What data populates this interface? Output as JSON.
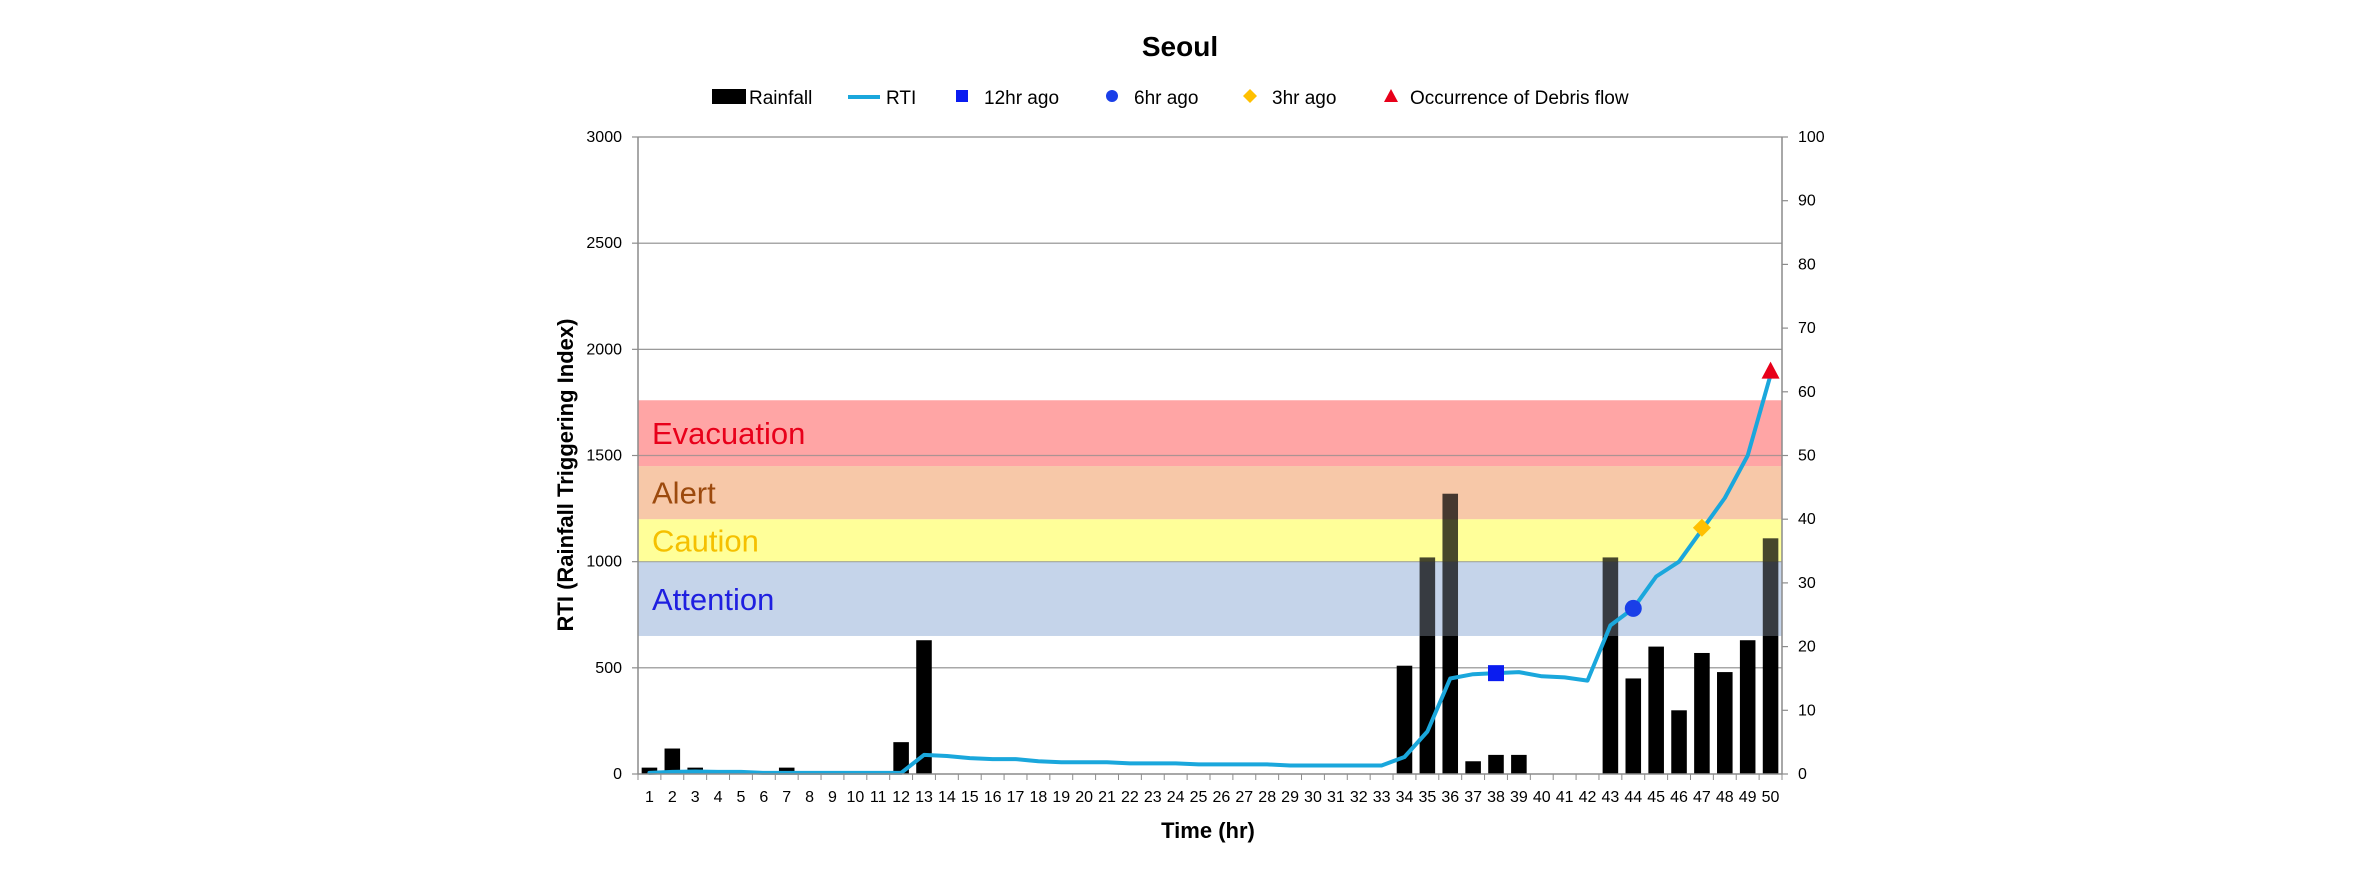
{
  "chart_data": {
    "type": "bar",
    "title": "Seoul",
    "xlabel": "Time (hr)",
    "ylabel": "RTI (Rainfall Triggering Index)",
    "ylim": [
      0,
      3000
    ],
    "y2lim": [
      0,
      100
    ],
    "yticks": [
      0,
      500,
      1000,
      1500,
      2000,
      2500,
      3000
    ],
    "y2ticks": [
      0,
      10,
      20,
      30,
      40,
      50,
      60,
      70,
      80,
      90,
      100
    ],
    "grid": true,
    "legend_position": "top-center",
    "categories": [
      "1",
      "2",
      "3",
      "4",
      "5",
      "6",
      "7",
      "8",
      "9",
      "10",
      "11",
      "12",
      "13",
      "14",
      "15",
      "16",
      "17",
      "18",
      "19",
      "20",
      "21",
      "22",
      "23",
      "24",
      "25",
      "26",
      "27",
      "28",
      "29",
      "30",
      "31",
      "32",
      "33",
      "34",
      "35",
      "36",
      "37",
      "38",
      "39",
      "40",
      "41",
      "42",
      "43",
      "44",
      "45",
      "46",
      "47",
      "48",
      "49",
      "50"
    ],
    "legend": {
      "rainfall": "Rainfall",
      "rti": "RTI",
      "ago12": "12hr ago",
      "ago6": "6hr ago",
      "ago3": "3hr ago",
      "occurrence": "Occurrence of Debris flow"
    },
    "zones": [
      {
        "label": "Attention",
        "from": 650,
        "to": 1000,
        "fill": "#c5d5ea",
        "text_color": "#1f1fe0"
      },
      {
        "label": "Caution",
        "from": 1000,
        "to": 1200,
        "fill": "#ffff99",
        "text_color": "#f5c000"
      },
      {
        "label": "Alert",
        "from": 1200,
        "to": 1450,
        "fill": "#f7c8a8",
        "text_color": "#9c4a0e"
      },
      {
        "label": "Evacuation",
        "from": 1450,
        "to": 1760,
        "fill": "#ffa6a6",
        "text_color": "#e8001a"
      }
    ],
    "series": [
      {
        "name": "Rainfall",
        "type": "bar",
        "axis": "y2",
        "color": "#000000",
        "values": [
          1,
          4,
          1,
          0,
          0,
          0,
          1,
          0,
          0,
          0,
          0,
          5,
          21,
          0,
          0,
          0,
          0,
          0,
          0,
          0,
          0,
          0,
          0,
          0,
          0,
          0,
          0,
          0,
          0,
          0,
          0,
          0,
          0,
          17,
          34,
          44,
          2,
          3,
          3,
          0,
          0,
          0,
          34,
          15,
          20,
          10,
          19,
          16,
          21,
          37
        ]
      },
      {
        "name": "RTI",
        "type": "line",
        "axis": "y",
        "color": "#1aa7dc",
        "values": [
          5,
          10,
          12,
          10,
          10,
          5,
          5,
          5,
          5,
          5,
          5,
          5,
          90,
          85,
          75,
          70,
          70,
          60,
          55,
          55,
          55,
          50,
          50,
          50,
          45,
          45,
          45,
          45,
          40,
          40,
          40,
          40,
          40,
          80,
          200,
          450,
          470,
          475,
          480,
          460,
          455,
          440,
          700,
          780,
          930,
          1000,
          1150,
          1300,
          1500,
          1880
        ]
      }
    ],
    "markers": [
      {
        "name": "12hr ago",
        "shape": "square",
        "color": "#0a1cf0",
        "x": 38,
        "y": 475
      },
      {
        "name": "6hr ago",
        "shape": "circle",
        "color": "#1a3fe8",
        "x": 44,
        "y": 780
      },
      {
        "name": "3hr ago",
        "shape": "diamond",
        "color": "#ffc000",
        "x": 47,
        "y": 1160
      },
      {
        "name": "Occurrence of Debris flow",
        "shape": "triangle",
        "color": "#e8001a",
        "x": 50,
        "y": 1900
      }
    ]
  }
}
